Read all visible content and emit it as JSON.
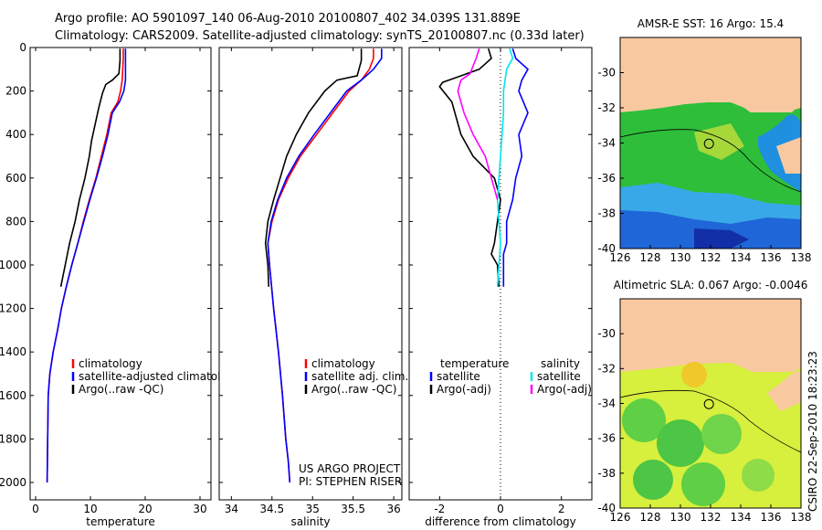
{
  "header": {
    "line1": "Argo profile: AO 5901097_140 06-Aug-2010 20100807_402 34.039S 131.889E",
    "line2": "Climatology: CARS2009. Satellite-adjusted climatology: synTS_20100807.nc (0.33d later)"
  },
  "side_label": "CSIRO  22-Sep-2010 18:23:23",
  "colors": {
    "climatology": "#ff0000",
    "satellite": "#0000ff",
    "argo": "#000000",
    "salinity_sat": "#00e5ee",
    "salinity_argo": "#ff00ff",
    "land": "#f8c9a0"
  },
  "chart_data": [
    {
      "type": "line",
      "id": "temperature",
      "xlabel": "temperature",
      "ylabel": "",
      "xlim": [
        -1,
        32
      ],
      "ylim": [
        0,
        2080
      ],
      "y_reversed": true,
      "xticks": [
        0,
        10,
        20,
        30
      ],
      "yticks": [
        0,
        200,
        400,
        600,
        800,
        1000,
        1200,
        1400,
        1600,
        1800,
        2000
      ],
      "legend": [
        "climatology",
        "satellite-adjusted climatology",
        "Argo(..raw -QC)"
      ],
      "series": [
        {
          "name": "climatology",
          "color_key": "climatology",
          "x": [
            16.0,
            16.0,
            15.9,
            15.8,
            15.5,
            15.0,
            13.8,
            13.0,
            12.0,
            11.0,
            9.8,
            8.7,
            7.7,
            6.6,
            5.6,
            4.7,
            4.0,
            3.2,
            2.6,
            2.3,
            2.2,
            2.1
          ],
          "y": [
            5,
            50,
            100,
            150,
            200,
            250,
            300,
            400,
            500,
            600,
            700,
            800,
            900,
            1000,
            1100,
            1200,
            1300,
            1400,
            1500,
            1600,
            1800,
            2000
          ]
        },
        {
          "name": "satellite-adjusted climatology",
          "color_key": "satellite",
          "x": [
            16.4,
            16.4,
            16.4,
            16.4,
            16.1,
            15.3,
            14.0,
            13.2,
            12.2,
            11.1,
            9.9,
            8.8,
            7.7,
            6.6,
            5.6,
            4.7,
            4.0,
            3.2,
            2.6,
            2.3,
            2.2,
            2.1
          ],
          "y": [
            5,
            50,
            100,
            150,
            200,
            250,
            300,
            400,
            500,
            600,
            700,
            800,
            900,
            1000,
            1100,
            1200,
            1300,
            1400,
            1500,
            1600,
            1800,
            2000
          ]
        },
        {
          "name": "Argo(..raw -QC)",
          "color_key": "argo",
          "x": [
            15.4,
            15.4,
            15.2,
            14.0,
            12.8,
            12.2,
            11.5,
            10.8,
            10.2,
            9.8,
            9.0,
            8.0,
            7.2,
            6.2,
            5.4,
            4.6
          ],
          "y": [
            5,
            60,
            120,
            150,
            170,
            210,
            280,
            360,
            430,
            500,
            600,
            700,
            800,
            900,
            1000,
            1100
          ]
        }
      ]
    },
    {
      "type": "line",
      "id": "salinity",
      "xlabel": "salinity",
      "ylabel": "",
      "xlim": [
        33.85,
        36.1
      ],
      "ylim": [
        0,
        2080
      ],
      "y_reversed": true,
      "xticks": [
        34,
        34.5,
        35,
        35.5,
        36
      ],
      "yticks": [
        0,
        200,
        400,
        600,
        800,
        1000,
        1200,
        1400,
        1600,
        1800,
        2000
      ],
      "legend": [
        "climatology",
        "satellite adj. clim.",
        "Argo(..raw -QC)"
      ],
      "annotation": [
        "US ARGO PROJECT",
        "PI: STEPHEN RISER"
      ],
      "series": [
        {
          "name": "climatology",
          "color_key": "climatology",
          "x": [
            35.75,
            35.75,
            35.7,
            35.6,
            35.45,
            35.25,
            35.05,
            34.85,
            34.7,
            34.58,
            34.5,
            34.45,
            34.47,
            34.52,
            34.58,
            34.63,
            34.67,
            34.7,
            34.72
          ],
          "y": [
            5,
            50,
            100,
            150,
            200,
            300,
            400,
            500,
            600,
            700,
            800,
            900,
            1000,
            1200,
            1400,
            1600,
            1800,
            1900,
            2000
          ]
        },
        {
          "name": "satellite adj. clim.",
          "color_key": "satellite",
          "x": [
            35.85,
            35.85,
            35.75,
            35.6,
            35.42,
            35.22,
            35.02,
            34.83,
            34.68,
            34.57,
            34.49,
            34.45,
            34.47,
            34.52,
            34.58,
            34.63,
            34.67,
            34.7,
            34.72
          ],
          "y": [
            5,
            50,
            100,
            150,
            200,
            300,
            400,
            500,
            600,
            700,
            800,
            900,
            1000,
            1200,
            1400,
            1600,
            1800,
            1900,
            2000
          ]
        },
        {
          "name": "Argo(..raw -QC)",
          "color_key": "argo",
          "x": [
            35.6,
            35.6,
            35.55,
            35.3,
            35.15,
            34.95,
            34.8,
            34.68,
            34.6,
            34.52,
            34.45,
            34.42,
            34.45,
            34.46
          ],
          "y": [
            5,
            60,
            130,
            150,
            200,
            300,
            400,
            500,
            600,
            700,
            800,
            900,
            1000,
            1100
          ]
        }
      ]
    },
    {
      "type": "line",
      "id": "difference",
      "xlabel": "difference from climatology",
      "ylabel": "",
      "xlim": [
        -3,
        3
      ],
      "ylim": [
        0,
        2080
      ],
      "y_reversed": true,
      "xticks": [
        -2,
        0,
        2
      ],
      "yticks": [
        0,
        200,
        400,
        600,
        800,
        1000,
        1200,
        1400,
        1600,
        1800,
        2000
      ],
      "legend_columns": [
        {
          "title": "temperature",
          "entries": [
            "satellite",
            "Argo(-adj)"
          ]
        },
        {
          "title": "salinity",
          "entries": [
            "satellite",
            "Argo(-adj)"
          ]
        }
      ],
      "zero_line": 0,
      "series": [
        {
          "name": "temperature satellite",
          "color_key": "satellite",
          "x": [
            0.4,
            0.5,
            0.9,
            0.7,
            0.6,
            0.9,
            0.6,
            0.7,
            0.5,
            0.4,
            0.2,
            0.2,
            0.1,
            0.1,
            0.1,
            0.1
          ],
          "y": [
            5,
            50,
            100,
            150,
            200,
            300,
            400,
            500,
            600,
            700,
            800,
            900,
            950,
            1000,
            1050,
            1100
          ]
        },
        {
          "name": "temperature Argo(-adj)",
          "color_key": "argo",
          "x": [
            -0.4,
            -0.3,
            -0.7,
            -1.9,
            -2.0,
            -1.6,
            -1.3,
            -0.9,
            -0.2,
            0.0,
            -0.1,
            -0.2,
            -0.3,
            -0.1,
            -0.05
          ],
          "y": [
            5,
            50,
            100,
            160,
            180,
            250,
            400,
            500,
            600,
            700,
            800,
            900,
            950,
            1000,
            1100
          ]
        },
        {
          "name": "salinity satellite",
          "color_key": "salinity_sat",
          "x": [
            0.3,
            0.4,
            0.2,
            0.1,
            0.1,
            0.05,
            0.0,
            -0.05,
            -0.1,
            -0.05,
            0.0,
            -0.05,
            -0.1
          ],
          "y": [
            5,
            50,
            100,
            200,
            300,
            400,
            500,
            600,
            700,
            800,
            900,
            1000,
            1100
          ]
        },
        {
          "name": "salinity Argo(-adj)",
          "color_key": "salinity_argo",
          "x": [
            -0.7,
            -0.8,
            -1.0,
            -1.3,
            -1.4,
            -1.2,
            -0.9,
            -0.5,
            -0.3,
            -0.1
          ],
          "y": [
            5,
            50,
            120,
            150,
            200,
            300,
            400,
            500,
            600,
            700
          ]
        }
      ]
    },
    {
      "type": "heatmap",
      "id": "sst_map",
      "title": "AMSR-E SST: 16 Argo: 15.4",
      "xlim": [
        126,
        138
      ],
      "ylim": [
        -40,
        -28
      ],
      "xticks": [
        126,
        128,
        130,
        132,
        134,
        136,
        138
      ],
      "yticks": [
        -30,
        -32,
        -34,
        -36,
        -38,
        -40
      ],
      "marker": {
        "lon": 131.889,
        "lat": -34.039
      }
    },
    {
      "type": "heatmap",
      "id": "sla_map",
      "title": "Altimetric SLA: 0.067 Argo: -0.0046",
      "xlim": [
        126,
        138
      ],
      "ylim": [
        -40,
        -28
      ],
      "xticks": [
        126,
        128,
        130,
        132,
        134,
        136,
        138
      ],
      "yticks": [
        -30,
        -32,
        -34,
        -36,
        -38,
        -40
      ],
      "marker": {
        "lon": 131.889,
        "lat": -34.039
      }
    }
  ]
}
